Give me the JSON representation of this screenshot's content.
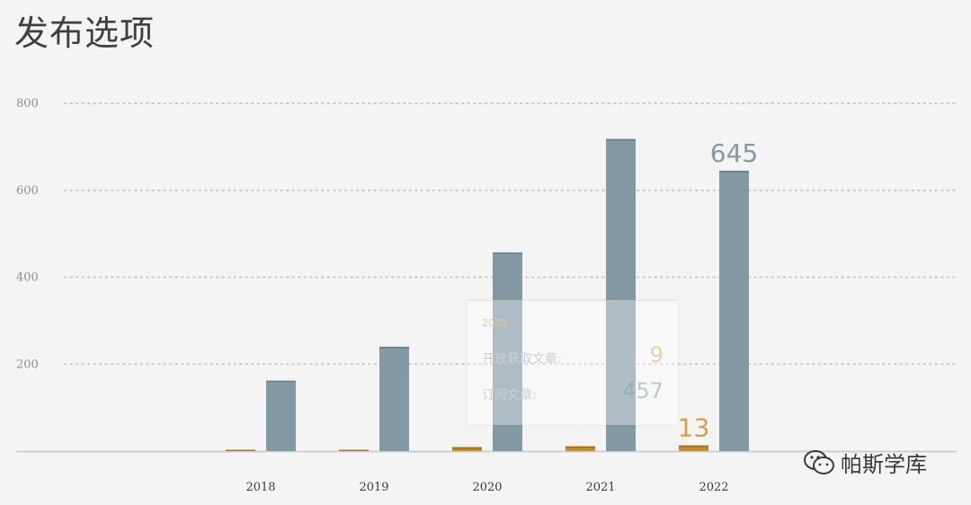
{
  "title": "发布选项",
  "chart_data": {
    "type": "bar",
    "categories": [
      "2018",
      "2019",
      "2020",
      "2021",
      "2022"
    ],
    "series": [
      {
        "name": "开放获取文章",
        "values": [
          3,
          3,
          9,
          11,
          13
        ],
        "color": "#c48f2a"
      },
      {
        "name": "订阅文章",
        "values": [
          162,
          240,
          457,
          718,
          645
        ],
        "color": "#8399a4"
      }
    ],
    "ylim": [
      0,
      800
    ],
    "yticks": [
      200,
      400,
      600,
      800
    ],
    "grid": "dotted",
    "data_labels": [
      {
        "category": "2022",
        "series": "开放获取文章",
        "text": "13"
      },
      {
        "category": "2022",
        "series": "订阅文章",
        "text": "645"
      }
    ]
  },
  "tooltip": {
    "year": "2020",
    "rows": [
      {
        "label": "开放获取文章:",
        "value": "9"
      },
      {
        "label": "订阅文章:",
        "value": "457"
      }
    ]
  },
  "watermark": {
    "text": "帕斯学库",
    "icon": "wechat-icon"
  }
}
